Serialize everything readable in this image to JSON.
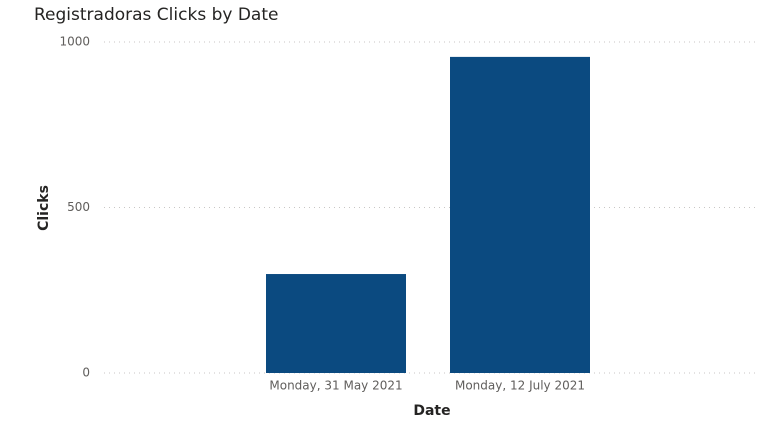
{
  "chart_data": {
    "type": "bar",
    "title": "Registradoras Clicks by Date",
    "x_label": "Date",
    "y_label": "Clicks",
    "categories": [
      "Monday, 31 May 2021",
      "Monday, 12 July 2021"
    ],
    "values": [
      299,
      955
    ],
    "color": "#0b4a80",
    "ylim": [
      0,
      1000
    ],
    "yticks": [
      0,
      500,
      1000
    ],
    "grid": true
  }
}
